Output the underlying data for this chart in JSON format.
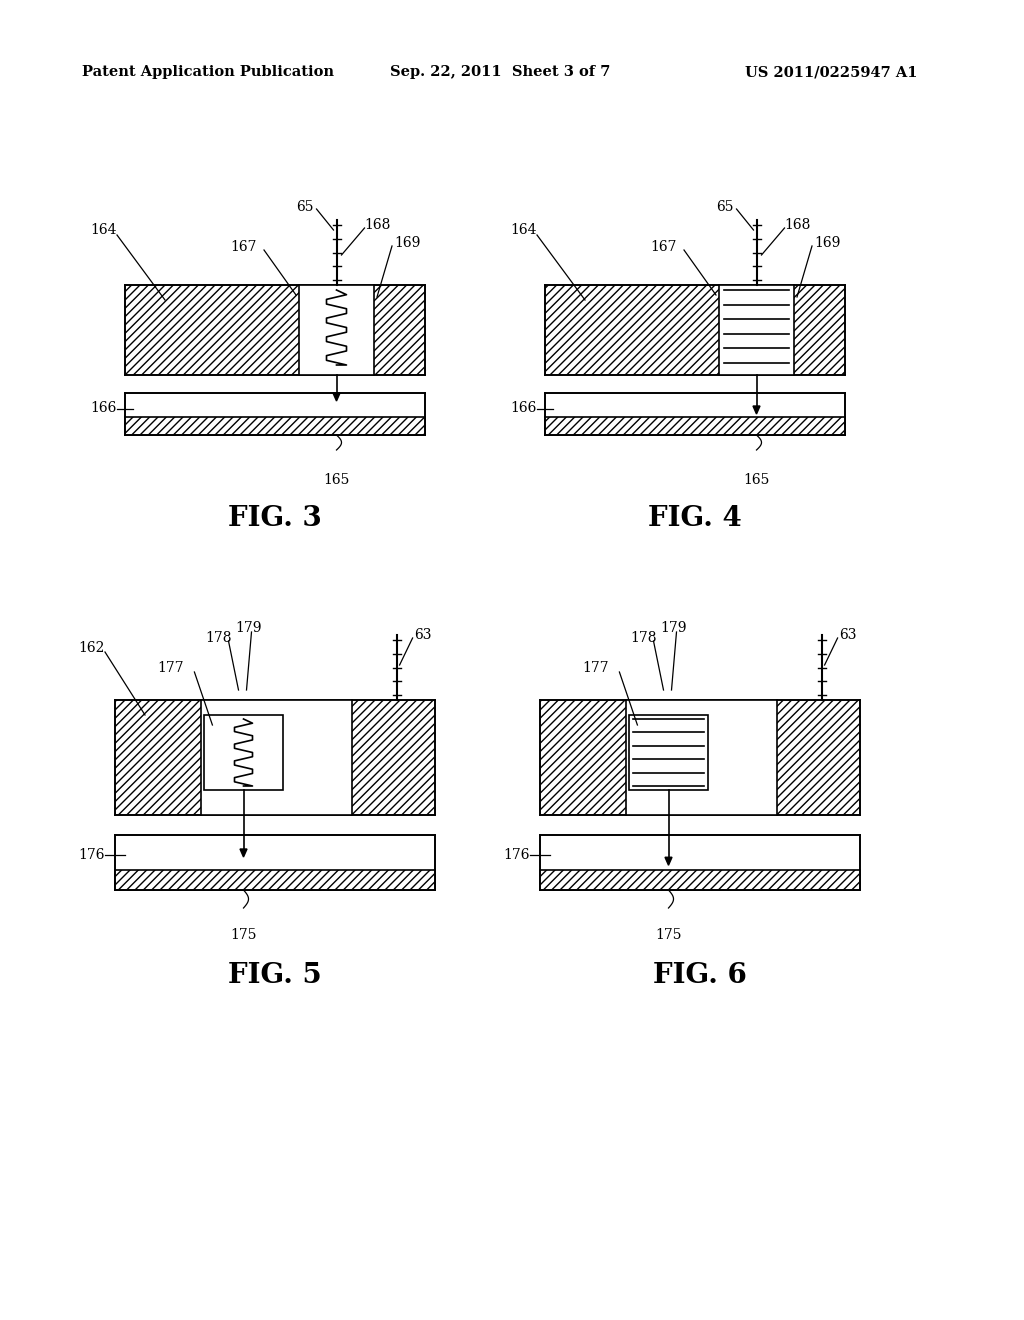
{
  "background_color": "#ffffff",
  "header_left": "Patent Application Publication",
  "header_center": "Sep. 22, 2011  Sheet 3 of 7",
  "header_right": "US 2011/0225947 A1",
  "fig3_title": "FIG. 3",
  "fig4_title": "FIG. 4",
  "fig5_title": "FIG. 5",
  "fig6_title": "FIG. 6",
  "line_color": "#000000"
}
